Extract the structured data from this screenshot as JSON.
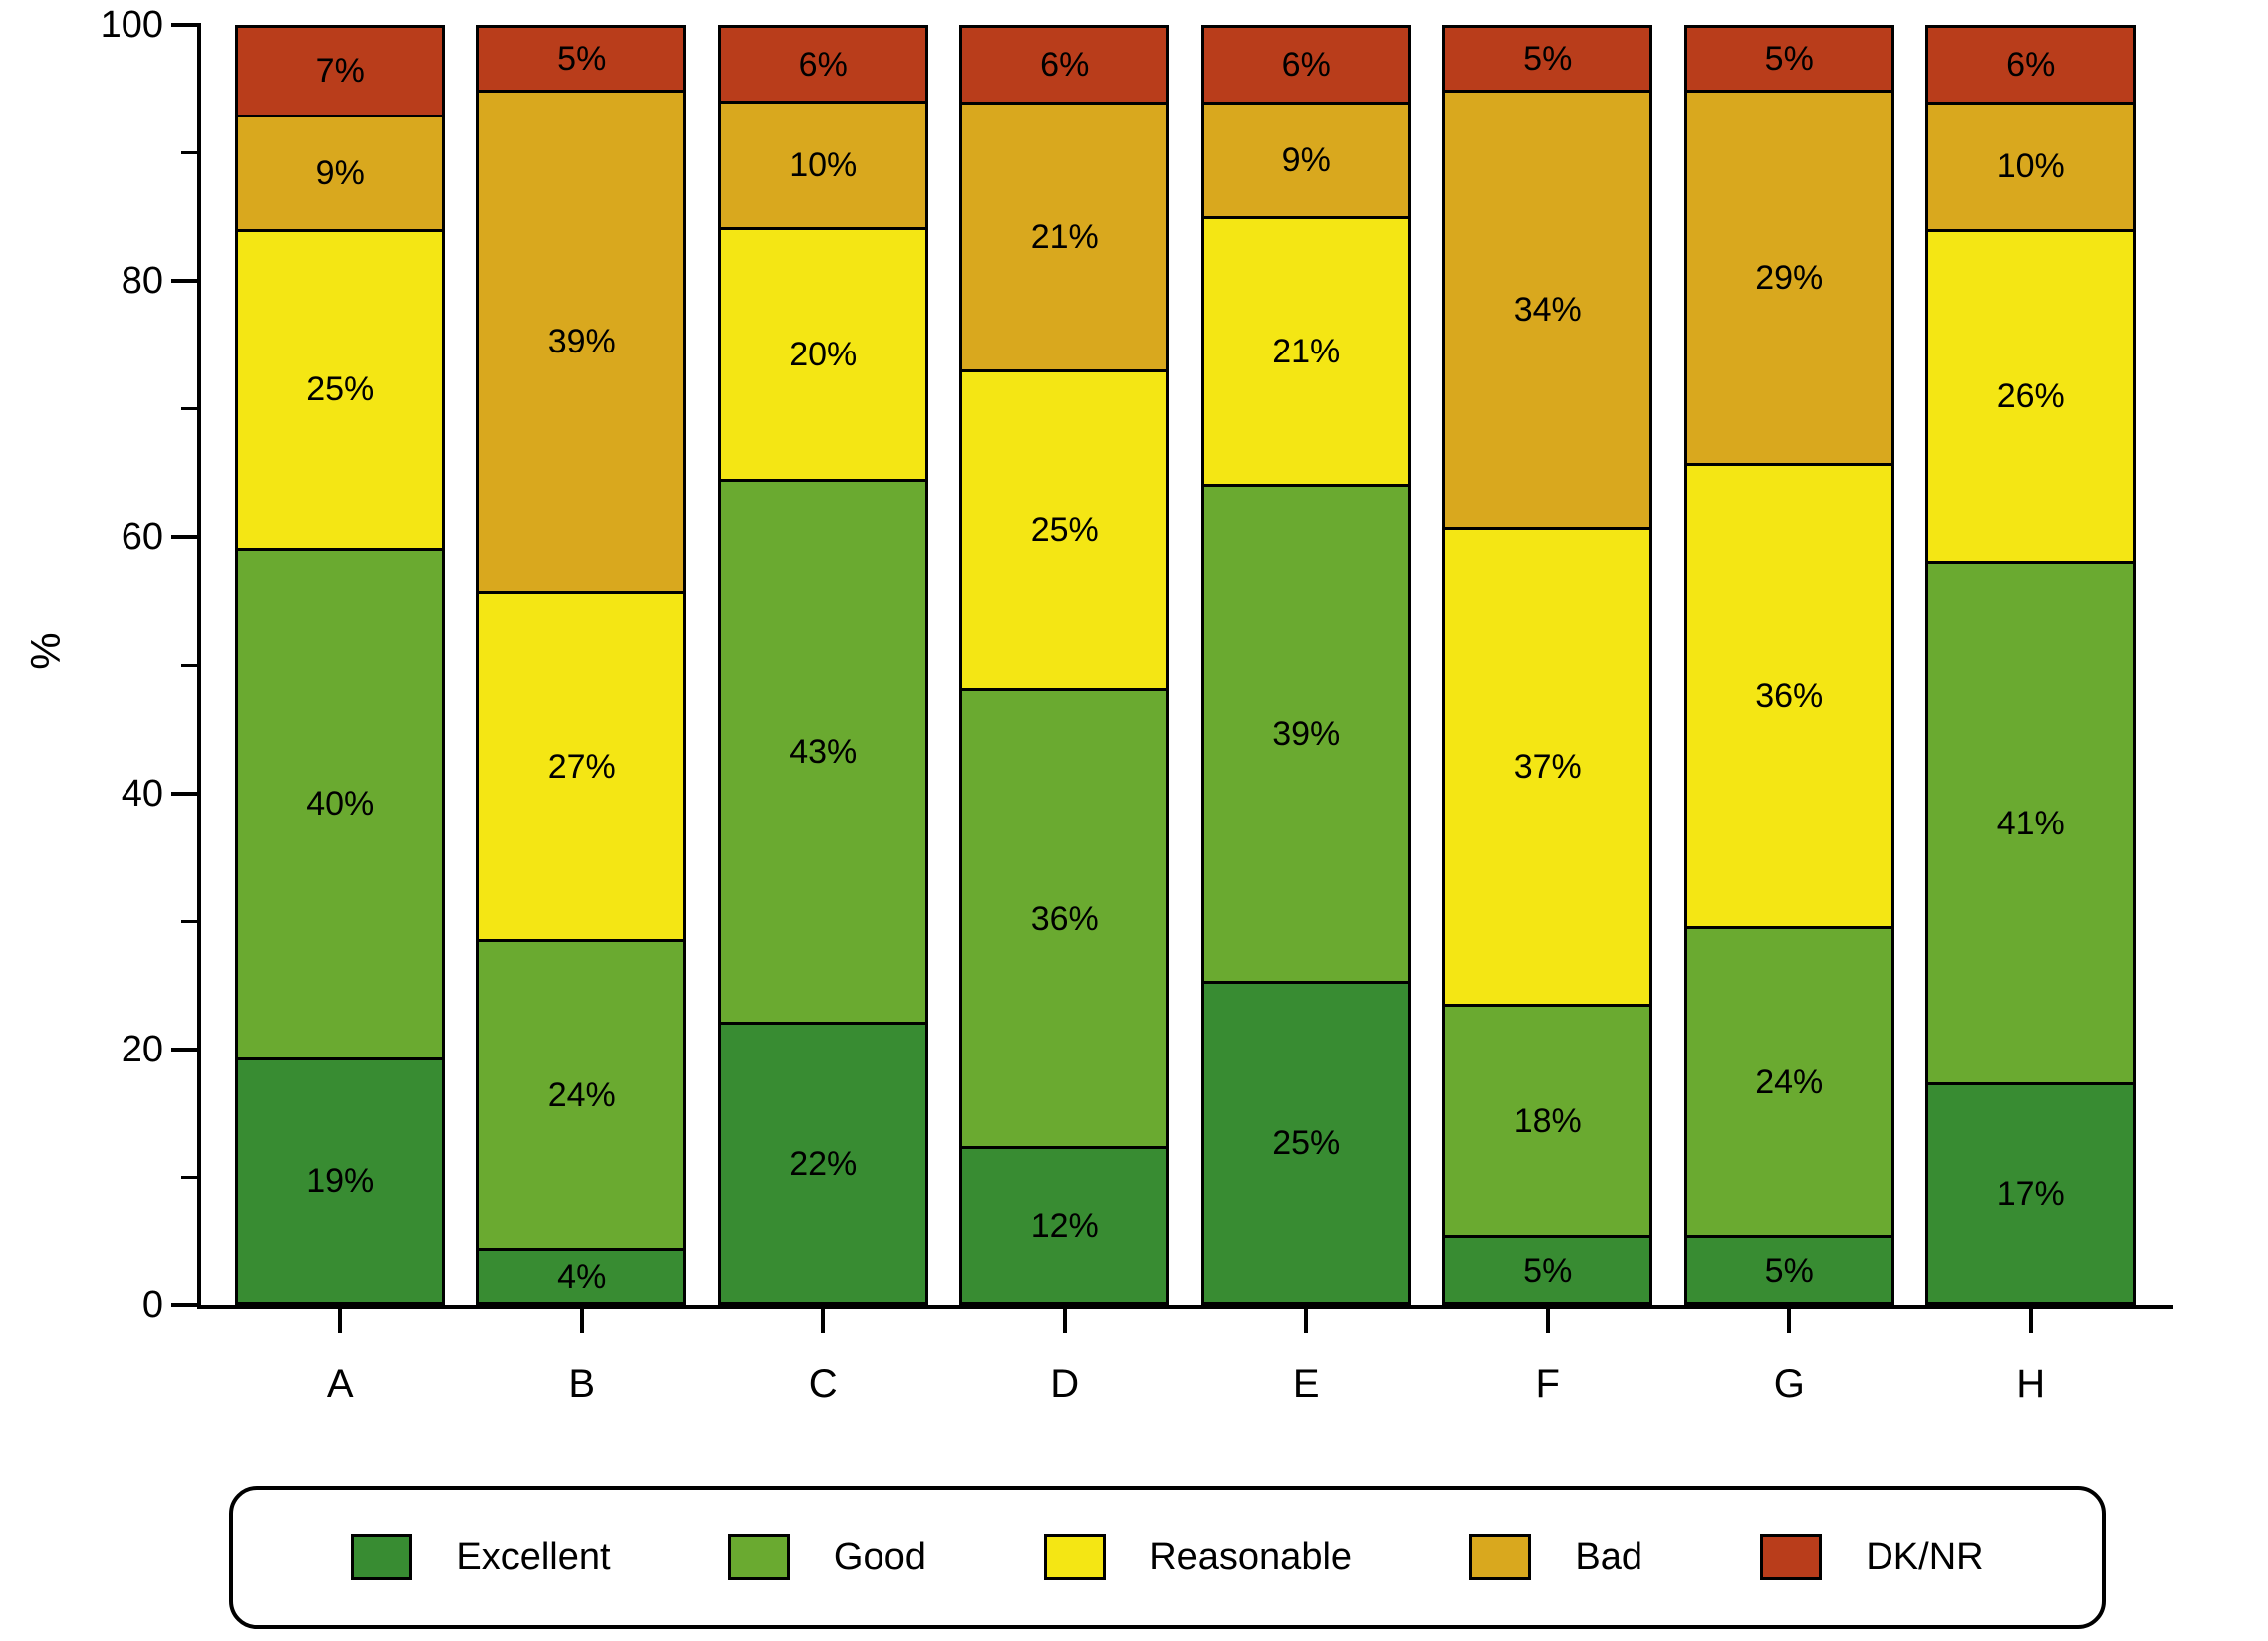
{
  "chart_data": {
    "type": "bar",
    "stacked": true,
    "orientation": "vertical",
    "title": "",
    "xlabel": "",
    "ylabel": "%",
    "ylim": [
      0,
      100
    ],
    "yticks_major": [
      0,
      20,
      40,
      60,
      80,
      100
    ],
    "yticks_minor": [
      10,
      30,
      50,
      70,
      90
    ],
    "grid": false,
    "legend_position": "bottom",
    "value_suffix": "%",
    "categories": [
      "A",
      "B",
      "C",
      "D",
      "E",
      "F",
      "G",
      "H"
    ],
    "series": [
      {
        "name": "Excellent",
        "color": "#388C32",
        "values": [
          19,
          4,
          22,
          12,
          25,
          5,
          5,
          17
        ]
      },
      {
        "name": "Good",
        "color": "#6AAA30",
        "values": [
          40,
          24,
          43,
          36,
          39,
          18,
          24,
          41
        ]
      },
      {
        "name": "Reasonable",
        "color": "#F4E614",
        "values": [
          25,
          27,
          20,
          25,
          21,
          37,
          36,
          26
        ]
      },
      {
        "name": "Bad",
        "color": "#D9A81E",
        "values": [
          9,
          39,
          10,
          21,
          9,
          34,
          29,
          10
        ]
      },
      {
        "name": "DK/NR",
        "color": "#B93D1B",
        "values": [
          7,
          5,
          6,
          6,
          6,
          5,
          5,
          6
        ]
      }
    ],
    "bar_labels_visible": true,
    "colors": {
      "axis": "#000000",
      "text": "#000000",
      "background": "#ffffff"
    }
  }
}
